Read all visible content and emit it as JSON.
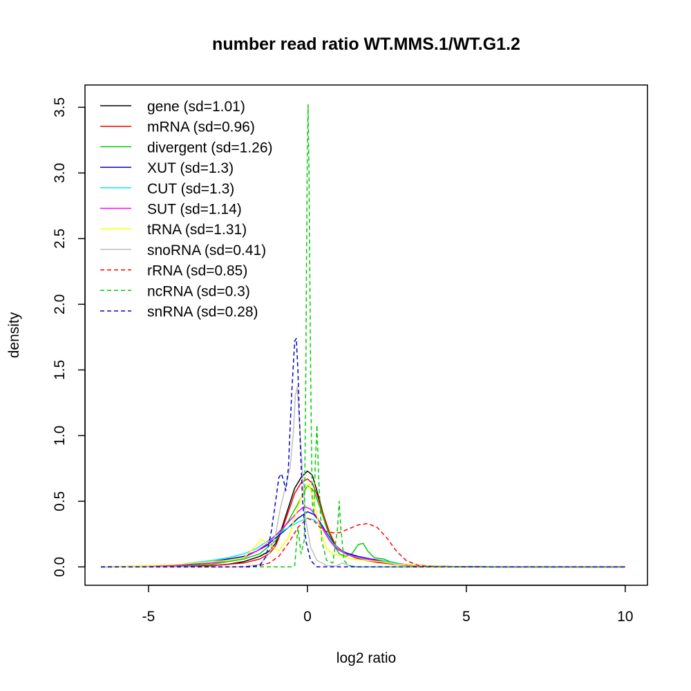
{
  "chart_data": {
    "type": "line",
    "title": "number read ratio WT.MMS.1/WT.G1.2",
    "xlabel": "log2 ratio",
    "ylabel": "density",
    "xlim": [
      -7.0,
      10.7
    ],
    "ylim": [
      -0.14,
      3.67
    ],
    "xticks": [
      -5,
      0,
      5,
      10
    ],
    "xtick_labels": [
      "-5",
      "0",
      "5",
      "10"
    ],
    "yticks": [
      0.0,
      0.5,
      1.0,
      1.5,
      2.0,
      2.5,
      3.0,
      3.5
    ],
    "ytick_labels": [
      "0.0",
      "0.5",
      "1.0",
      "1.5",
      "2.0",
      "2.5",
      "3.0",
      "3.5"
    ],
    "grid": false,
    "legend_position": "top-left",
    "series": [
      {
        "name": "gene (sd=1.01)",
        "color": "#000000",
        "dash": "solid",
        "points": [
          [
            -6.5,
            0
          ],
          [
            -4,
            0.003
          ],
          [
            -3,
            0.01
          ],
          [
            -2.5,
            0.02
          ],
          [
            -2,
            0.04
          ],
          [
            -1.5,
            0.08
          ],
          [
            -1.2,
            0.12
          ],
          [
            -1,
            0.18
          ],
          [
            -0.8,
            0.3
          ],
          [
            -0.6,
            0.45
          ],
          [
            -0.4,
            0.6
          ],
          [
            -0.2,
            0.68
          ],
          [
            0,
            0.73
          ],
          [
            0.15,
            0.7
          ],
          [
            0.3,
            0.58
          ],
          [
            0.5,
            0.4
          ],
          [
            0.7,
            0.25
          ],
          [
            0.9,
            0.15
          ],
          [
            1.2,
            0.1
          ],
          [
            1.5,
            0.08
          ],
          [
            1.8,
            0.06
          ],
          [
            2.2,
            0.04
          ],
          [
            2.7,
            0.03
          ],
          [
            3.2,
            0.015
          ],
          [
            4,
            0.005
          ],
          [
            5,
            0.001
          ],
          [
            10,
            0
          ]
        ]
      },
      {
        "name": "mRNA (sd=0.96)",
        "color": "#ff0000",
        "dash": "solid",
        "points": [
          [
            -6.5,
            0
          ],
          [
            -4,
            0.003
          ],
          [
            -3,
            0.01
          ],
          [
            -2.5,
            0.02
          ],
          [
            -2,
            0.03
          ],
          [
            -1.5,
            0.06
          ],
          [
            -1.2,
            0.1
          ],
          [
            -1,
            0.16
          ],
          [
            -0.8,
            0.28
          ],
          [
            -0.6,
            0.42
          ],
          [
            -0.4,
            0.56
          ],
          [
            -0.2,
            0.64
          ],
          [
            0,
            0.67
          ],
          [
            0.15,
            0.64
          ],
          [
            0.3,
            0.55
          ],
          [
            0.5,
            0.4
          ],
          [
            0.7,
            0.26
          ],
          [
            0.9,
            0.16
          ],
          [
            1.2,
            0.1
          ],
          [
            1.5,
            0.07
          ],
          [
            1.8,
            0.05
          ],
          [
            2.2,
            0.035
          ],
          [
            2.7,
            0.02
          ],
          [
            3.2,
            0.01
          ],
          [
            4,
            0.004
          ],
          [
            5,
            0.001
          ],
          [
            10,
            0
          ]
        ]
      },
      {
        "name": "divergent (sd=1.26)",
        "color": "#00cc00",
        "dash": "solid",
        "points": [
          [
            -6.5,
            0
          ],
          [
            -4,
            0.005
          ],
          [
            -3,
            0.02
          ],
          [
            -2.5,
            0.04
          ],
          [
            -2,
            0.06
          ],
          [
            -1.5,
            0.1
          ],
          [
            -1,
            0.2
          ],
          [
            -0.6,
            0.35
          ],
          [
            -0.3,
            0.48
          ],
          [
            0,
            0.62
          ],
          [
            0.2,
            0.58
          ],
          [
            0.4,
            0.45
          ],
          [
            0.6,
            0.3
          ],
          [
            0.8,
            0.18
          ],
          [
            1,
            0.1
          ],
          [
            1.2,
            0.08
          ],
          [
            1.4,
            0.1
          ],
          [
            1.6,
            0.17
          ],
          [
            1.75,
            0.18
          ],
          [
            1.9,
            0.12
          ],
          [
            2.1,
            0.07
          ],
          [
            2.4,
            0.06
          ],
          [
            2.6,
            0.04
          ],
          [
            3,
            0.02
          ],
          [
            3.5,
            0.01
          ],
          [
            4.5,
            0.003
          ],
          [
            6,
            0
          ],
          [
            10,
            0
          ]
        ]
      },
      {
        "name": "XUT (sd=1.3)",
        "color": "#0000cc",
        "dash": "solid",
        "points": [
          [
            -6.5,
            0
          ],
          [
            -5,
            0.004
          ],
          [
            -4,
            0.015
          ],
          [
            -3,
            0.04
          ],
          [
            -2.5,
            0.06
          ],
          [
            -2,
            0.08
          ],
          [
            -1.6,
            0.12
          ],
          [
            -1.3,
            0.16
          ],
          [
            -1,
            0.22
          ],
          [
            -0.6,
            0.3
          ],
          [
            -0.3,
            0.37
          ],
          [
            0,
            0.42
          ],
          [
            0.2,
            0.4
          ],
          [
            0.4,
            0.34
          ],
          [
            0.6,
            0.26
          ],
          [
            0.8,
            0.18
          ],
          [
            1,
            0.13
          ],
          [
            1.3,
            0.1
          ],
          [
            1.6,
            0.08
          ],
          [
            2,
            0.06
          ],
          [
            2.5,
            0.04
          ],
          [
            3,
            0.02
          ],
          [
            3.5,
            0.01
          ],
          [
            4.5,
            0.003
          ],
          [
            6,
            0
          ],
          [
            10,
            0
          ]
        ]
      },
      {
        "name": "CUT (sd=1.3)",
        "color": "#00eeee",
        "dash": "solid",
        "points": [
          [
            -6.5,
            0
          ],
          [
            -5,
            0.005
          ],
          [
            -4,
            0.02
          ],
          [
            -3,
            0.05
          ],
          [
            -2.5,
            0.07
          ],
          [
            -2,
            0.1
          ],
          [
            -1.6,
            0.14
          ],
          [
            -1.3,
            0.19
          ],
          [
            -1,
            0.24
          ],
          [
            -0.6,
            0.3
          ],
          [
            -0.3,
            0.34
          ],
          [
            0,
            0.37
          ],
          [
            0.2,
            0.36
          ],
          [
            0.4,
            0.32
          ],
          [
            0.6,
            0.25
          ],
          [
            0.8,
            0.18
          ],
          [
            1,
            0.13
          ],
          [
            1.3,
            0.09
          ],
          [
            1.6,
            0.07
          ],
          [
            2,
            0.05
          ],
          [
            2.5,
            0.04
          ],
          [
            3,
            0.02
          ],
          [
            3.5,
            0.01
          ],
          [
            4.5,
            0.003
          ],
          [
            6,
            0
          ],
          [
            10,
            0
          ]
        ]
      },
      {
        "name": "SUT (sd=1.14)",
        "color": "#ff00ff",
        "dash": "solid",
        "points": [
          [
            -6.5,
            0
          ],
          [
            -4,
            0.01
          ],
          [
            -3,
            0.03
          ],
          [
            -2.5,
            0.05
          ],
          [
            -2,
            0.07
          ],
          [
            -1.6,
            0.12
          ],
          [
            -1.3,
            0.17
          ],
          [
            -1,
            0.24
          ],
          [
            -0.6,
            0.34
          ],
          [
            -0.3,
            0.42
          ],
          [
            -0.1,
            0.46
          ],
          [
            0.1,
            0.44
          ],
          [
            0.3,
            0.38
          ],
          [
            0.5,
            0.28
          ],
          [
            0.7,
            0.2
          ],
          [
            0.9,
            0.14
          ],
          [
            1.2,
            0.1
          ],
          [
            1.5,
            0.08
          ],
          [
            1.9,
            0.06
          ],
          [
            2.3,
            0.04
          ],
          [
            2.8,
            0.02
          ],
          [
            3.5,
            0.01
          ],
          [
            4.5,
            0.003
          ],
          [
            6,
            0
          ],
          [
            10,
            0
          ]
        ]
      },
      {
        "name": "tRNA (sd=1.31)",
        "color": "#ffff00",
        "dash": "solid",
        "points": [
          [
            -6.5,
            0
          ],
          [
            -5,
            0.01
          ],
          [
            -4,
            0.02
          ],
          [
            -3,
            0.04
          ],
          [
            -2.5,
            0.05
          ],
          [
            -2,
            0.07
          ],
          [
            -1.7,
            0.14
          ],
          [
            -1.45,
            0.21
          ],
          [
            -1.2,
            0.17
          ],
          [
            -0.9,
            0.12
          ],
          [
            -0.6,
            0.22
          ],
          [
            -0.3,
            0.45
          ],
          [
            -0.1,
            0.6
          ],
          [
            0.05,
            0.63
          ],
          [
            0.2,
            0.5
          ],
          [
            0.4,
            0.28
          ],
          [
            0.6,
            0.14
          ],
          [
            0.8,
            0.1
          ],
          [
            1.1,
            0.08
          ],
          [
            1.4,
            0.06
          ],
          [
            1.8,
            0.05
          ],
          [
            2.3,
            0.04
          ],
          [
            2.8,
            0.02
          ],
          [
            3.5,
            0.01
          ],
          [
            4.5,
            0.003
          ],
          [
            6,
            0
          ],
          [
            10,
            0
          ]
        ]
      },
      {
        "name": "snoRNA (sd=0.41)",
        "color": "#bebebe",
        "dash": "solid",
        "points": [
          [
            -6.5,
            0
          ],
          [
            -2,
            0
          ],
          [
            -1.5,
            0.02
          ],
          [
            -1.2,
            0.1
          ],
          [
            -1,
            0.25
          ],
          [
            -0.85,
            0.45
          ],
          [
            -0.7,
            0.6
          ],
          [
            -0.55,
            0.75
          ],
          [
            -0.45,
            1.0
          ],
          [
            -0.38,
            1.3
          ],
          [
            -0.32,
            1.37
          ],
          [
            -0.25,
            1.1
          ],
          [
            -0.15,
            0.7
          ],
          [
            -0.05,
            0.35
          ],
          [
            0.1,
            0.15
          ],
          [
            0.3,
            0.05
          ],
          [
            0.6,
            0.01
          ],
          [
            0.9,
            0.005
          ],
          [
            1.1,
            0.03
          ],
          [
            1.3,
            0.01
          ],
          [
            1.6,
            0
          ],
          [
            10,
            0
          ]
        ]
      },
      {
        "name": "rRNA (sd=0.85)",
        "color": "#ff0000",
        "dash": "dashed",
        "points": [
          [
            -6.5,
            0
          ],
          [
            -2.5,
            0
          ],
          [
            -2,
            0.002
          ],
          [
            -1.5,
            0.01
          ],
          [
            -1.2,
            0.03
          ],
          [
            -0.9,
            0.08
          ],
          [
            -0.6,
            0.18
          ],
          [
            -0.3,
            0.3
          ],
          [
            0,
            0.37
          ],
          [
            0.2,
            0.35
          ],
          [
            0.4,
            0.3
          ],
          [
            0.6,
            0.27
          ],
          [
            0.8,
            0.26
          ],
          [
            1,
            0.26
          ],
          [
            1.3,
            0.29
          ],
          [
            1.6,
            0.32
          ],
          [
            1.9,
            0.33
          ],
          [
            2.2,
            0.3
          ],
          [
            2.5,
            0.22
          ],
          [
            2.8,
            0.12
          ],
          [
            3.1,
            0.05
          ],
          [
            3.5,
            0.01
          ],
          [
            4,
            0.002
          ],
          [
            5,
            0
          ],
          [
            10,
            0
          ]
        ]
      },
      {
        "name": "ncRNA (sd=0.3)",
        "color": "#00cc00",
        "dash": "dashed",
        "points": [
          [
            -6.5,
            0
          ],
          [
            -0.5,
            0
          ],
          [
            -0.4,
            0.01
          ],
          [
            -0.3,
            0.3
          ],
          [
            -0.2,
            0.1
          ],
          [
            -0.1,
            0.2
          ],
          [
            -0.05,
            1.5
          ],
          [
            -0.01,
            3.0
          ],
          [
            0.02,
            3.52
          ],
          [
            0.05,
            3.0
          ],
          [
            0.1,
            1.5
          ],
          [
            0.15,
            0.5
          ],
          [
            0.2,
            0.4
          ],
          [
            0.25,
            0.8
          ],
          [
            0.3,
            1.08
          ],
          [
            0.35,
            0.7
          ],
          [
            0.45,
            0.2
          ],
          [
            0.6,
            0.05
          ],
          [
            0.8,
            0.03
          ],
          [
            0.95,
            0.3
          ],
          [
            1.0,
            0.5
          ],
          [
            1.05,
            0.3
          ],
          [
            1.15,
            0.05
          ],
          [
            1.3,
            0.01
          ],
          [
            1.5,
            0
          ],
          [
            10,
            0
          ]
        ]
      },
      {
        "name": "snRNA (sd=0.28)",
        "color": "#0000cc",
        "dash": "dashed",
        "points": [
          [
            -6.5,
            0
          ],
          [
            -1.8,
            0
          ],
          [
            -1.5,
            0.01
          ],
          [
            -1.3,
            0.08
          ],
          [
            -1.15,
            0.25
          ],
          [
            -1.0,
            0.5
          ],
          [
            -0.9,
            0.68
          ],
          [
            -0.82,
            0.71
          ],
          [
            -0.75,
            0.66
          ],
          [
            -0.68,
            0.58
          ],
          [
            -0.6,
            0.75
          ],
          [
            -0.5,
            1.3
          ],
          [
            -0.4,
            1.72
          ],
          [
            -0.35,
            1.74
          ],
          [
            -0.3,
            1.5
          ],
          [
            -0.22,
            0.9
          ],
          [
            -0.15,
            0.5
          ],
          [
            -0.05,
            0.2
          ],
          [
            0.1,
            0.05
          ],
          [
            0.3,
            0
          ],
          [
            10,
            0
          ]
        ]
      }
    ]
  }
}
